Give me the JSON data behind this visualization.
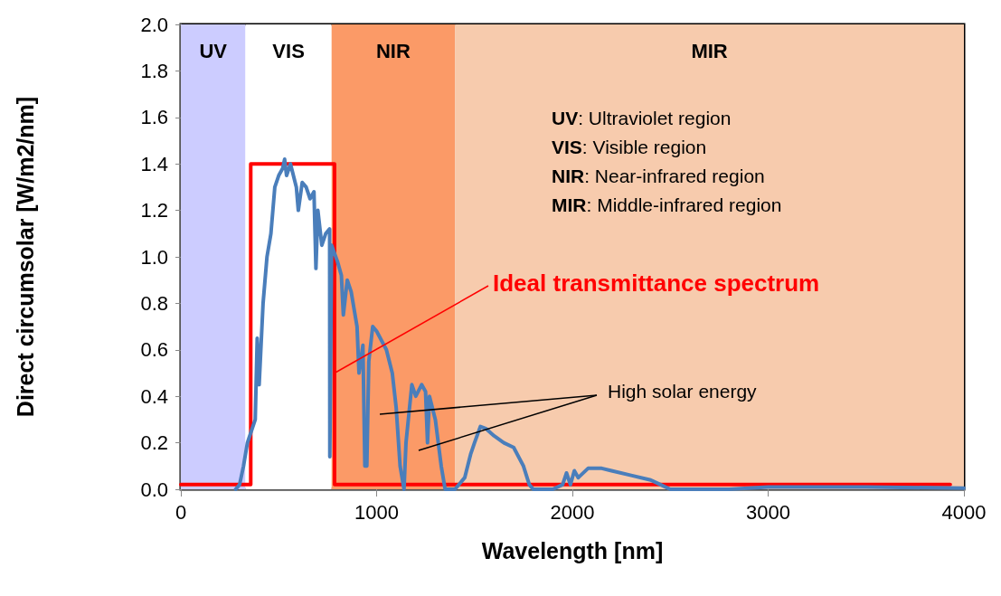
{
  "chart_data": {
    "type": "line",
    "xlabel": "Wavelength [nm]",
    "ylabel": "Direct circumsolar [W/m2/nm]",
    "xlim": [
      0,
      4000
    ],
    "xticks": [
      0,
      1000,
      2000,
      3000,
      4000
    ],
    "ylim": [
      0,
      2.0
    ],
    "yticks": [
      {
        "value": 0,
        "label": "0.0"
      },
      {
        "value": 0.2,
        "label": "0.2"
      },
      {
        "value": 0.4,
        "label": "0.4"
      },
      {
        "value": 0.6,
        "label": "0.6"
      },
      {
        "value": 0.8,
        "label": "0.8"
      },
      {
        "value": 1.0,
        "label": "1.0"
      },
      {
        "value": 1.2,
        "label": "1.2"
      },
      {
        "value": 1.4,
        "label": "1.4"
      },
      {
        "value": 1.6,
        "label": "1.6"
      },
      {
        "value": 1.8,
        "label": "1.8"
      },
      {
        "value": 2.0,
        "label": "2.0"
      }
    ],
    "grid": false,
    "marker": "none",
    "line_style": "solid",
    "bands": [
      {
        "axis": "x",
        "from": 0,
        "to": 330,
        "label": "UV",
        "color": "#ccccff"
      },
      {
        "axis": "x",
        "from": 330,
        "to": 770,
        "label": "VIS",
        "color": "#ffffff"
      },
      {
        "axis": "x",
        "from": 770,
        "to": 1400,
        "label": "NIR",
        "color": "#fb9a67"
      },
      {
        "axis": "x",
        "from": 1400,
        "to": 4000,
        "label": "MIR",
        "color": "#f7cbad"
      }
    ],
    "series": [
      {
        "color": "#4a7ebb",
        "x": [
          280,
          300,
          320,
          340,
          360,
          380,
          390,
          400,
          420,
          440,
          460,
          470,
          480,
          500,
          520,
          530,
          540,
          560,
          590,
          600,
          620,
          640,
          660,
          680,
          690,
          700,
          720,
          740,
          760,
          761,
          770,
          800,
          820,
          830,
          850,
          870,
          900,
          910,
          930,
          940,
          950,
          960,
          980,
          1000,
          1050,
          1080,
          1100,
          1120,
          1140,
          1150,
          1180,
          1200,
          1230,
          1250,
          1260,
          1270,
          1300,
          1330,
          1350,
          1400,
          1450,
          1480,
          1500,
          1530,
          1560,
          1600,
          1650,
          1700,
          1750,
          1780,
          1800,
          1900,
          1950,
          1970,
          1990,
          2010,
          2030,
          2080,
          2150,
          2200,
          2300,
          2400,
          2450,
          2500,
          2800,
          2900,
          3000,
          3500,
          4000
        ],
        "values": [
          0,
          0.02,
          0.1,
          0.2,
          0.25,
          0.3,
          0.65,
          0.45,
          0.8,
          1.0,
          1.1,
          1.2,
          1.3,
          1.35,
          1.38,
          1.42,
          1.35,
          1.4,
          1.3,
          1.2,
          1.32,
          1.3,
          1.25,
          1.28,
          0.95,
          1.2,
          1.05,
          1.1,
          1.12,
          0.14,
          1.05,
          0.98,
          0.92,
          0.75,
          0.9,
          0.85,
          0.7,
          0.5,
          0.62,
          0.1,
          0.1,
          0.55,
          0.7,
          0.68,
          0.6,
          0.5,
          0.35,
          0.1,
          0.0,
          0.2,
          0.45,
          0.4,
          0.45,
          0.42,
          0.2,
          0.4,
          0.3,
          0.1,
          0.0,
          0.0,
          0.05,
          0.15,
          0.2,
          0.27,
          0.26,
          0.23,
          0.2,
          0.18,
          0.1,
          0.02,
          0,
          0,
          0.02,
          0.07,
          0.02,
          0.08,
          0.05,
          0.09,
          0.09,
          0.08,
          0.06,
          0.04,
          0.02,
          0,
          0,
          0.005,
          0.01,
          0.01,
          0.005
        ]
      },
      {
        "color": "#ff0000",
        "x": [
          0,
          357,
          357,
          785,
          785,
          3930
        ],
        "values": [
          0.02,
          0.02,
          1.4,
          1.4,
          0.02,
          0.02
        ]
      }
    ],
    "annotations": [
      "UV: Ultraviolet region",
      "VIS: Visible region",
      "NIR: Near-infrared region",
      "MIR: Middle-infrared region",
      {
        "text": "Ideal transmittance spectrum",
        "x": 785,
        "y": 0.5
      },
      "High solar energy"
    ]
  }
}
